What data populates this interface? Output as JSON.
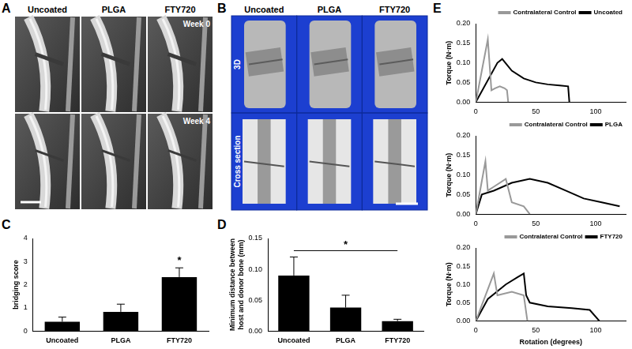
{
  "image_panels": [
    {
      "title": "A",
      "columns": [
        "Uncoated",
        "PLGA",
        "FTY720"
      ],
      "rows": [
        "Week 0",
        "Week 4"
      ]
    },
    {
      "title": "B",
      "columns": [
        "Uncoated",
        "PLGA",
        "FTY720"
      ],
      "rows": [
        "3D",
        "Cross section"
      ]
    }
  ],
  "chart_data": [
    {
      "type": "bar",
      "title": "C",
      "categories": [
        "Uncoated",
        "PLGA",
        "FTY720"
      ],
      "values": [
        0.4,
        0.83,
        2.33
      ],
      "errors": [
        0.2,
        0.33,
        0.4
      ],
      "color": "#000000",
      "y_label": "bridging score",
      "ylim": [
        0,
        4
      ],
      "yticks": [
        0,
        1,
        2,
        3,
        4
      ],
      "annotations": [
        {
          "text": "*",
          "category": "FTY720"
        }
      ]
    },
    {
      "type": "bar",
      "title": "D",
      "categories": [
        "Uncoated",
        "PLGA",
        "FTY720"
      ],
      "values": [
        0.09,
        0.038,
        0.016
      ],
      "errors": [
        0.03,
        0.02,
        0.003
      ],
      "color": "#000000",
      "y_label": [
        "Minimum distance between",
        "host and donor bone (mm)"
      ],
      "ylim": [
        0,
        0.15
      ],
      "yticks": [
        {
          "value": 0,
          "label": "0.00"
        },
        {
          "value": 0.05,
          "label": "0.05"
        },
        {
          "value": 0.1,
          "label": "0.10"
        },
        {
          "value": 0.15,
          "label": "0.15"
        }
      ],
      "annotations": [
        {
          "text": "*",
          "from": "Uncoated",
          "to": "FTY720"
        }
      ]
    },
    {
      "type": "line",
      "title": "E",
      "y_label": "Torque (N·m)",
      "xlim": [
        0,
        125
      ],
      "xticks": [
        0,
        50,
        100
      ],
      "ylim": [
        0,
        0.2
      ],
      "yticks": [
        {
          "value": 0,
          "label": "0.00"
        },
        {
          "value": 0.05,
          "label": "0.05"
        },
        {
          "value": 0.1,
          "label": "0.10"
        },
        {
          "value": 0.15,
          "label": "0.15"
        },
        {
          "value": 0.2,
          "label": "0.20"
        }
      ],
      "legend": "upper right",
      "series": [
        {
          "name": "Contralateral Control",
          "color": "#999999",
          "x": [
            0,
            10,
            13,
            16,
            20,
            24,
            26,
            27
          ],
          "values": [
            0,
            0.16,
            0.03,
            0.035,
            0.04,
            0.035,
            0.03,
            0
          ]
        },
        {
          "name": "Uncoated",
          "color": "#000000",
          "x": [
            0,
            18,
            22,
            26,
            30,
            40,
            50,
            60,
            70,
            77,
            78
          ],
          "values": [
            0,
            0.1,
            0.11,
            0.095,
            0.08,
            0.06,
            0.05,
            0.045,
            0.042,
            0.04,
            0
          ]
        }
      ]
    },
    {
      "type": "line",
      "y_label": "Torque (N·m)",
      "xlim": [
        0,
        125
      ],
      "xticks": [
        0,
        50,
        100
      ],
      "ylim": [
        0,
        0.2
      ],
      "yticks": [
        {
          "value": 0,
          "label": "0.00"
        },
        {
          "value": 0.05,
          "label": "0.05"
        },
        {
          "value": 0.1,
          "label": "0.10"
        },
        {
          "value": 0.15,
          "label": "0.15"
        },
        {
          "value": 0.2,
          "label": "0.20"
        }
      ],
      "legend": "upper right",
      "series": [
        {
          "name": "Contralateral Control",
          "color": "#999999",
          "x": [
            0,
            8,
            10,
            15,
            25,
            30,
            40,
            45
          ],
          "values": [
            0,
            0.135,
            0.06,
            0.07,
            0.09,
            0.03,
            0.02,
            0
          ]
        },
        {
          "name": "PLGA",
          "color": "#000000",
          "x": [
            0,
            5,
            15,
            30,
            45,
            60,
            75,
            90,
            105,
            120
          ],
          "values": [
            0,
            0.05,
            0.06,
            0.08,
            0.09,
            0.08,
            0.06,
            0.04,
            0.03,
            0.02
          ]
        }
      ]
    },
    {
      "type": "line",
      "y_label": "Torque (N·m)",
      "x_label": "Rotation (degrees)",
      "xlim": [
        0,
        125
      ],
      "xticks": [
        0,
        50,
        100
      ],
      "ylim": [
        0,
        0.2
      ],
      "yticks": [
        {
          "value": 0,
          "label": "0.00"
        },
        {
          "value": 0.05,
          "label": "0.05"
        },
        {
          "value": 0.1,
          "label": "0.10"
        },
        {
          "value": 0.15,
          "label": "0.15"
        },
        {
          "value": 0.2,
          "label": "0.20"
        }
      ],
      "legend": "upper right",
      "series": [
        {
          "name": "Contralateral Control",
          "color": "#999999",
          "x": [
            0,
            15,
            18,
            30,
            40,
            43
          ],
          "values": [
            0,
            0.13,
            0.07,
            0.08,
            0.07,
            0
          ]
        },
        {
          "name": "FTY720",
          "color": "#000000",
          "x": [
            0,
            10,
            25,
            35,
            40,
            42,
            45,
            60,
            80,
            95,
            103
          ],
          "values": [
            0,
            0.06,
            0.1,
            0.12,
            0.13,
            0.07,
            0.05,
            0.04,
            0.035,
            0.03,
            0
          ]
        }
      ]
    }
  ]
}
